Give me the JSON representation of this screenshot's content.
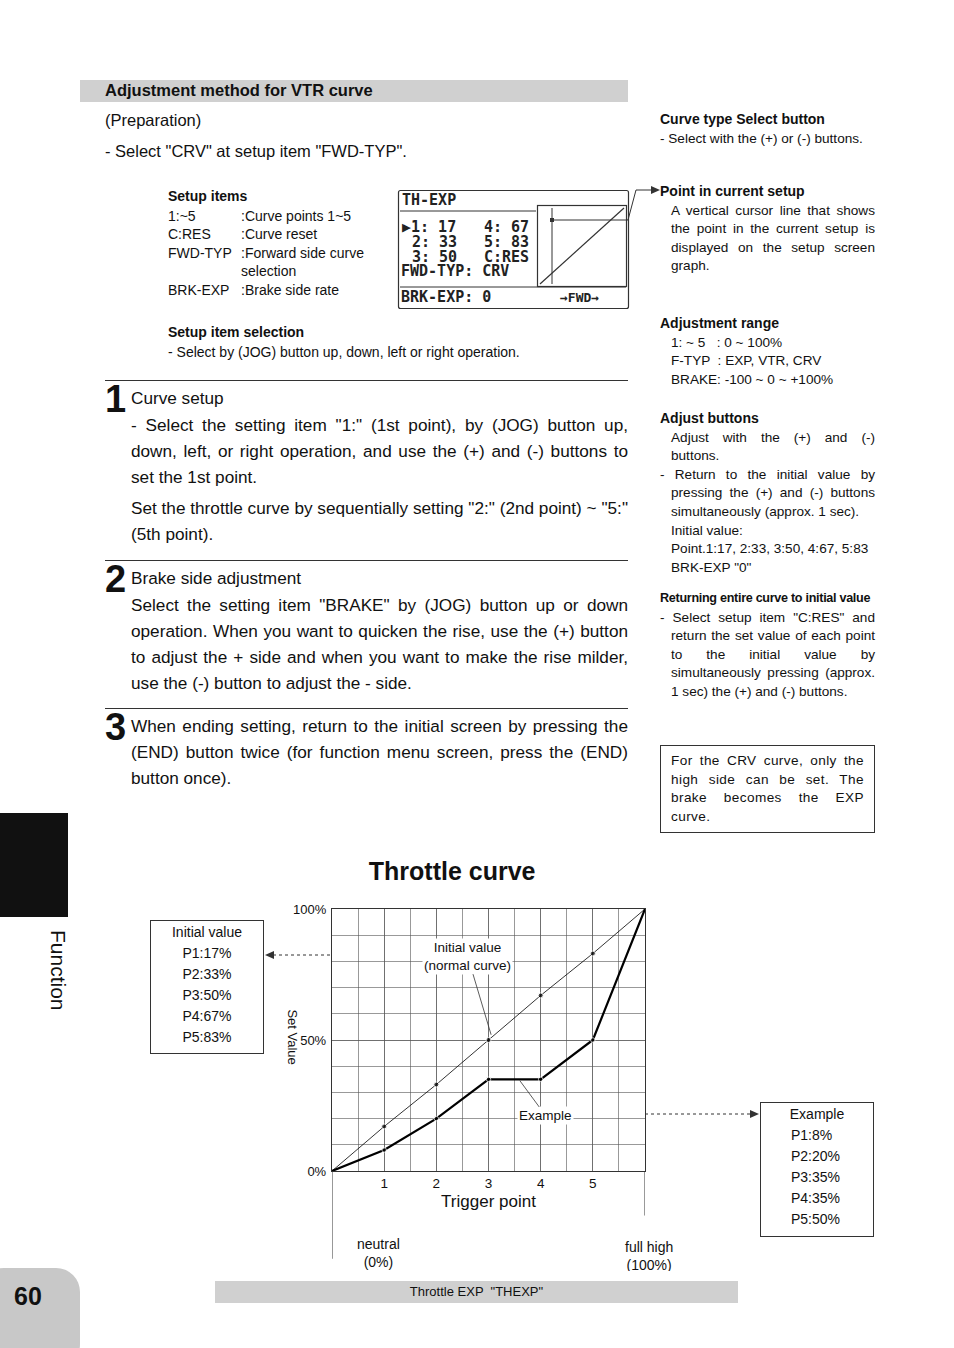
{
  "header": {
    "title": "Adjustment method for VTR curve",
    "preparation": "(Preparation)",
    "prep_item": "- Select \"CRV\" at setup item \"FWD-TYP\"."
  },
  "setup_items": {
    "title": "Setup items",
    "rows": [
      [
        "1:~5",
        ":Curve points 1~5"
      ],
      [
        "C:RES",
        ":Curve reset"
      ],
      [
        "FWD-TYP",
        ":Forward side curve selection"
      ],
      [
        "BRK-EXP",
        ":Brake side rate"
      ]
    ]
  },
  "setup_selection": {
    "title": "Setup item selection",
    "text": "- Select by (JOG) button up, down, left or right operation."
  },
  "lcd": {
    "title": "TH-EXP",
    "rows": [
      [
        "▶1: 17",
        "4: 67"
      ],
      [
        "2: 33",
        "5: 83"
      ],
      [
        "3: 50",
        "C:RES"
      ]
    ],
    "fwd": "FWD-TYP: CRV",
    "brk": "BRK-EXP:   0",
    "dir": "→FWD→"
  },
  "steps": [
    {
      "number": "1",
      "title": "Curve setup",
      "paragraphs": [
        "- Select the setting item \"1:\" (1st point), by (JOG) button up, down, left, or right operation, and use the (+) and (-) buttons to set the 1st point.",
        "Set the throttle curve by sequentially setting \"2:\" (2nd point) ~ \"5:\" (5th point)."
      ]
    },
    {
      "number": "2",
      "title": "Brake side adjustment",
      "paragraphs": [
        "Select the setting item \"BRAKE\" by (JOG) button up or down operation. When you want to quicken the rise, use the (+) button to adjust the + side and when you want to make the rise milder, use the (-) button to adjust the - side."
      ]
    },
    {
      "number": "3",
      "paragraphs": [
        "When ending setting, return to the initial screen by pressing the (END) button twice (for function menu screen, press the (END) button once)."
      ]
    }
  ],
  "sidebar": [
    {
      "title": "Curve type Select button",
      "lines": [
        "- Select with the (+) or (-) buttons."
      ]
    },
    {
      "title": "Point in current setup",
      "lines": [
        "A vertical cursor line that shows the point in the current setup is displayed on the setup screen graph."
      ]
    },
    {
      "title": "Adjustment range",
      "lines": [
        "1: ~ 5   : 0 ~ 100%",
        "F-TYP  : EXP, VTR, CRV",
        "BRAKE: -100 ~ 0 ~ +100%"
      ]
    },
    {
      "title": "Adjust buttons",
      "lines": [
        "Adjust with the (+) and (-) buttons.",
        "- Return to the initial value by pressing the (+) and (-) buttons simultaneously (approx. 1 sec).",
        "Initial value:",
        "Point.1:17, 2:33, 3:50, 4:67, 5:83",
        "BRK-EXP \"0\""
      ]
    },
    {
      "title": "Returning entire curve to initial value",
      "lines": [
        "- Select setup item \"C:RES\" and return the set value of each point to the initial value by simultaneously pressing (approx. 1 sec) the (+) and (-) buttons."
      ]
    }
  ],
  "note": "For the CRV curve, only the high side can be set. The brake becomes the EXP curve.",
  "side_tab": "Function",
  "page_number": "60",
  "footer": "Throttle EXP  \"THEXP\"",
  "chart_data": {
    "type": "line",
    "title": "Throttle curve",
    "x_label": "Trigger point",
    "y_label": "Set Value",
    "x": [
      0,
      1,
      2,
      3,
      4,
      5,
      6
    ],
    "xlim": [
      0,
      6
    ],
    "xticks": [
      1,
      2,
      3,
      4,
      5
    ],
    "ylim": [
      0,
      100
    ],
    "yticks": [
      {
        "value": 0,
        "label": "0%"
      },
      {
        "value": 50,
        "label": "50%"
      },
      {
        "value": 100,
        "label": "100%"
      }
    ],
    "grid": true,
    "series": [
      {
        "name": "Initial value\n(normal curve)",
        "color": "#000000",
        "line_style": "thin",
        "marker": "circle",
        "values": [
          0,
          17,
          33,
          50,
          67,
          83,
          100
        ]
      },
      {
        "name": "Example",
        "color": "#000000",
        "line_style": "thick",
        "marker": "circle",
        "values": [
          0,
          8,
          20,
          35,
          35,
          50,
          100
        ]
      }
    ],
    "annotations": [
      {
        "text": "neutral\n(0%)",
        "x": 0
      },
      {
        "text": "full high\n(100%)",
        "x": 6
      }
    ],
    "boxes": [
      {
        "title": "Initial value",
        "lines": [
          "P1:17%",
          "P2:33%",
          "P3:50%",
          "P4:67%",
          "P5:83%"
        ]
      },
      {
        "title": "Example",
        "lines": [
          "P1:8%",
          "P2:20%",
          "P3:35%",
          "P4:35%",
          "P5:50%"
        ]
      }
    ]
  }
}
